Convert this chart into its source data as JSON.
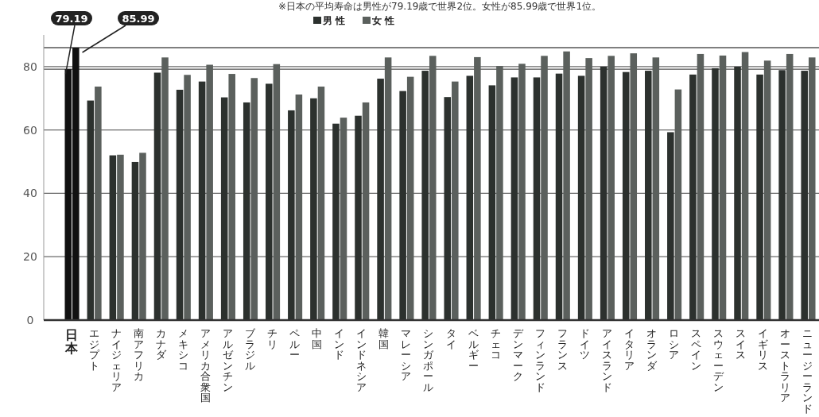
{
  "chart_data": {
    "type": "bar",
    "annotations": [
      "※日本の平均寿命は男性が79.19歳で世界2位。女性が85.99歳で世界1位。"
    ],
    "categories": [
      "日本",
      "エジプト",
      "ナイジェリア",
      "南アフリカ",
      "カナダ",
      "メキシコ",
      "アメリカ合衆国",
      "アルゼンチン",
      "ブラジル",
      "チリ",
      "ペルー",
      "中国",
      "インド",
      "インドネシア",
      "韓国",
      "マレーシア",
      "シンガポール",
      "タイ",
      "ベルギー",
      "チェコ",
      "デンマーク",
      "フィンランド",
      "フランス",
      "ドイツ",
      "アイスランド",
      "イタリア",
      "オランダ",
      "ロシア",
      "スペイン",
      "スウェーデン",
      "スイス",
      "イギリス",
      "オーストラリア",
      "ニュージーランド"
    ],
    "series": [
      {
        "name": "男 性",
        "color": "#2c312e",
        "colors": [
          "#111111",
          "#2c312e",
          "#2c312e",
          "#2c312e",
          "#2c312e",
          "#2c312e",
          "#2c312e",
          "#2c312e",
          "#2c312e",
          "#2c312e",
          "#2c312e",
          "#2c312e",
          "#2c312e",
          "#2c312e",
          "#2c312e",
          "#2c312e",
          "#2c312e",
          "#2c312e",
          "#2c312e",
          "#2c312e",
          "#2c312e",
          "#2c312e",
          "#2c312e",
          "#2c312e",
          "#2c312e",
          "#2c312e",
          "#2c312e",
          "#2c312e",
          "#2c312e",
          "#2c312e",
          "#2c312e",
          "#2c312e",
          "#2c312e",
          "#2c312e"
        ],
        "values": [
          79.19,
          69.3,
          52.0,
          49.9,
          78.1,
          72.7,
          75.3,
          70.3,
          68.7,
          74.6,
          66.2,
          70.0,
          62.0,
          64.5,
          76.2,
          72.3,
          78.7,
          70.4,
          77.1,
          74.1,
          76.6,
          76.6,
          77.8,
          77.1,
          80.0,
          78.3,
          78.7,
          59.3,
          77.5,
          79.5,
          80.0,
          77.5,
          78.9,
          78.7
        ]
      },
      {
        "name": "女 性",
        "color": "#5b605d",
        "colors": [
          "#111111",
          "#5b605d",
          "#5b605d",
          "#5b605d",
          "#5b605d",
          "#5b605d",
          "#5b605d",
          "#5b605d",
          "#5b605d",
          "#5b605d",
          "#5b605d",
          "#5b605d",
          "#5b605d",
          "#5b605d",
          "#5b605d",
          "#5b605d",
          "#5b605d",
          "#5b605d",
          "#5b605d",
          "#5b605d",
          "#5b605d",
          "#5b605d",
          "#5b605d",
          "#5b605d",
          "#5b605d",
          "#5b605d",
          "#5b605d",
          "#5b605d",
          "#5b605d",
          "#5b605d",
          "#5b605d",
          "#5b605d",
          "#5b605d",
          "#5b605d"
        ],
        "values": [
          85.99,
          73.7,
          52.2,
          52.8,
          82.9,
          77.4,
          80.6,
          77.7,
          76.4,
          80.8,
          71.2,
          73.7,
          63.9,
          68.7,
          82.9,
          76.8,
          83.4,
          75.3,
          83.0,
          80.2,
          80.9,
          83.4,
          84.8,
          82.7,
          83.4,
          84.2,
          82.9,
          72.8,
          84.0,
          83.5,
          84.6,
          81.9,
          84.0,
          82.9
        ]
      }
    ],
    "ylim": [
      0,
      90
    ],
    "yticks": [
      0,
      20,
      40,
      60,
      80
    ],
    "grid": "y",
    "legend": "top",
    "ref_lines": [
      {
        "axis": "y",
        "value": 79.19,
        "label": "79.19",
        "color": "#555555"
      },
      {
        "axis": "y",
        "value": 85.99,
        "label": "85.99",
        "color": "#555555"
      }
    ]
  }
}
